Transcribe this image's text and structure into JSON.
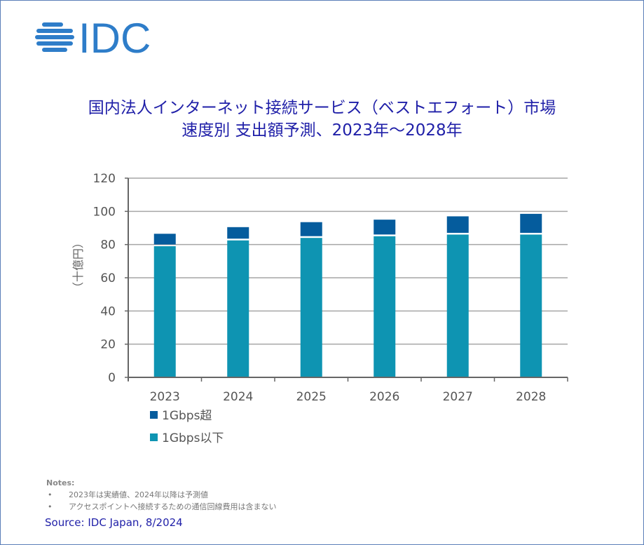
{
  "logo": {
    "text": "IDC",
    "color": "#2e7dc9"
  },
  "chart_data": {
    "type": "bar",
    "stacked": true,
    "title": "国内法人インターネット接続サービス（ベストエフォート）市場",
    "subtitle": "速度別 支出額予測、2023年～2028年",
    "xlabel": "",
    "ylabel": "（十億円）",
    "ylim": [
      0,
      120
    ],
    "yticks": [
      "0",
      "20",
      "40",
      "60",
      "80",
      "100",
      "120"
    ],
    "grid": true,
    "legend_position": "bottom-left",
    "categories": [
      "2023",
      "2024",
      "2025",
      "2026",
      "2027",
      "2028"
    ],
    "series": [
      {
        "name": "1Gbps以下",
        "color": "#0e94b2",
        "values": [
          79,
          82.5,
          84,
          85,
          86,
          86
        ]
      },
      {
        "name": "1Gbps超",
        "color": "#055c9d",
        "values": [
          7.5,
          8,
          9.5,
          10,
          11,
          12.5
        ]
      }
    ]
  },
  "legend": [
    {
      "label": "1Gbps超",
      "color": "#055c9d"
    },
    {
      "label": "1Gbps以下",
      "color": "#0e94b2"
    }
  ],
  "notes": {
    "header": "Notes:",
    "items": [
      "2023年は実績値、2024年以降は予測値",
      "アクセスポイントへ接続するための通信回線費用は含まない"
    ],
    "bullet": "•"
  },
  "source": "Source: IDC Japan, 8/2024"
}
